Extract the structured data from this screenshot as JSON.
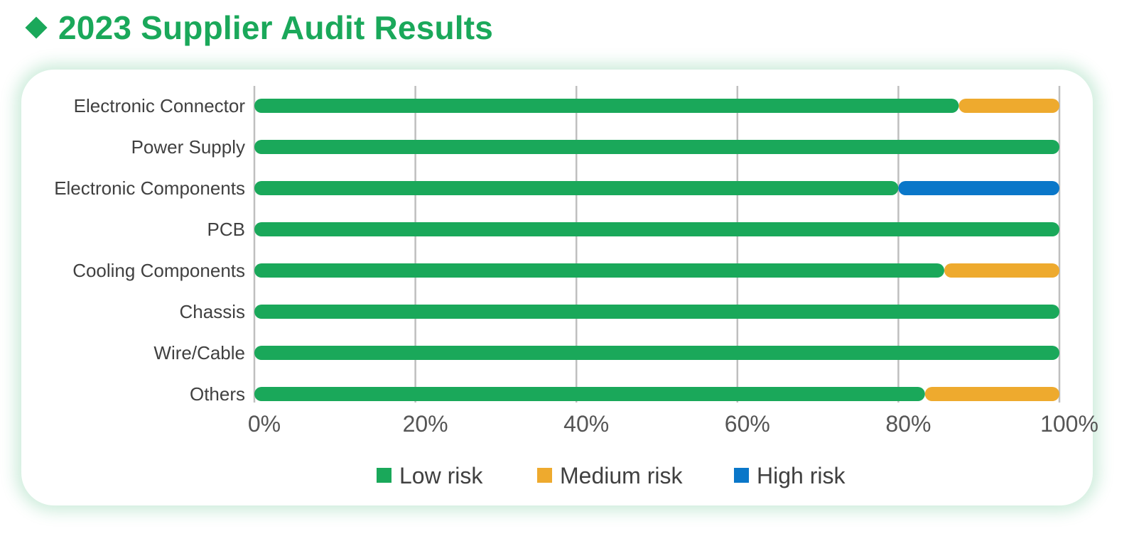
{
  "title": "2023 Supplier Audit Results",
  "chart_data": {
    "type": "bar",
    "orientation": "horizontal",
    "stacked": true,
    "categories": [
      "Electronic Connector",
      "Power Supply",
      "Electronic Components",
      "PCB",
      "Cooling Components",
      "Chassis",
      "Wire/Cable",
      "Others"
    ],
    "series": [
      {
        "name": "Low risk",
        "color": "#1aa85a",
        "values": [
          87.5,
          100,
          80,
          100,
          85.7,
          100,
          100,
          83.3
        ]
      },
      {
        "name": "Medium risk",
        "color": "#eeaa2e",
        "values": [
          12.5,
          0,
          0,
          0,
          14.3,
          0,
          0,
          16.7
        ]
      },
      {
        "name": "High risk",
        "color": "#0a77c9",
        "values": [
          0,
          0,
          20,
          0,
          0,
          0,
          0,
          0
        ]
      }
    ],
    "xlim": [
      0,
      100
    ],
    "xticks": [
      "0%",
      "20%",
      "40%",
      "60%",
      "80%",
      "100%"
    ],
    "grid": true,
    "legend": "bottom"
  }
}
